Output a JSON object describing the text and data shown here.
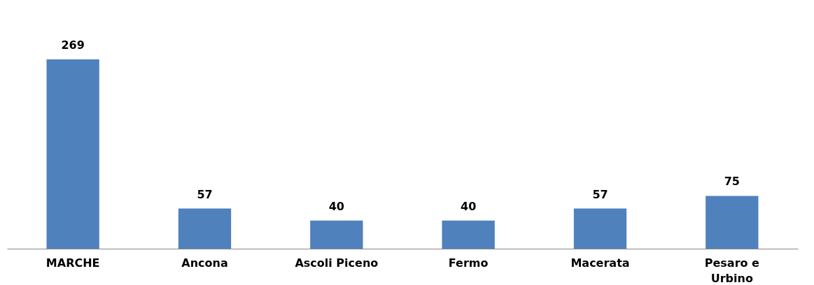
{
  "chart_data": {
    "type": "bar",
    "categories": [
      "MARCHE",
      "Ancona",
      "Ascoli Piceno",
      "Fermo",
      "Macerata",
      "Pesaro e Urbino"
    ],
    "values": [
      269,
      57,
      40,
      40,
      57,
      75
    ],
    "color": "#4f81bd",
    "data_labels": true
  }
}
